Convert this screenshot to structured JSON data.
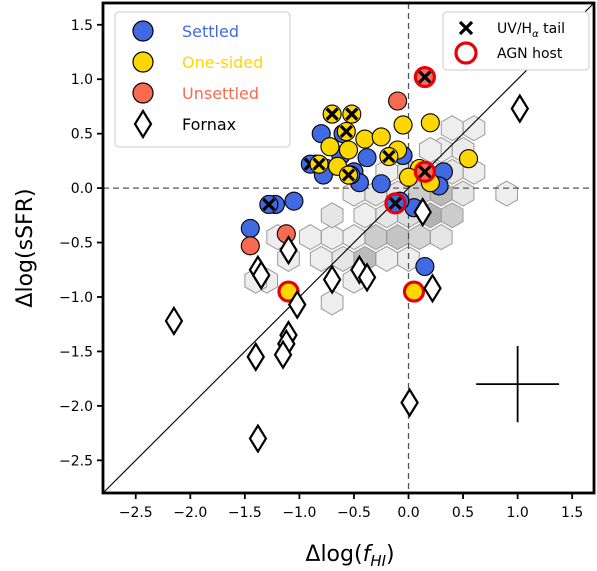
{
  "chart_data": {
    "type": "scatter",
    "title": "",
    "xlabel_main": "Δlog(",
    "xlabel_var": "f",
    "xlabel_sub": "HI",
    "xlabel_close": ")",
    "ylabel": "Δlog(sSFR)",
    "xlim": [
      -2.8,
      1.7
    ],
    "ylim": [
      -2.8,
      1.7
    ],
    "xticks": [
      -2.5,
      -2.0,
      -1.5,
      -1.0,
      -0.5,
      0.0,
      0.5,
      1.0,
      1.5
    ],
    "xtick_labels": [
      "−2.5",
      "−2.0",
      "−1.5",
      "−1.0",
      "−0.5",
      "0.0",
      "0.5",
      "1.0",
      "1.5"
    ],
    "yticks": [
      -2.5,
      -2.0,
      -1.5,
      -1.0,
      -0.5,
      0.0,
      0.5,
      1.0,
      1.5
    ],
    "ytick_labels": [
      "−2.5",
      "−2.0",
      "−1.5",
      "−1.0",
      "−0.5",
      "0.0",
      "0.5",
      "1.0",
      "1.5"
    ],
    "reference_lines": {
      "vertical_x": 0.0,
      "horizontal_y": 0.0,
      "one_to_one": true
    },
    "error_cross": {
      "x": 1.0,
      "y": -1.8,
      "xerr": 0.38,
      "yerr": 0.35
    },
    "legend_left": [
      {
        "label": "Settled",
        "marker": "circle",
        "color": "#4169e1",
        "text_color": "#4169e1"
      },
      {
        "label": "One-sided",
        "marker": "circle",
        "color": "#ffd700",
        "text_color": "#ffd700"
      },
      {
        "label": "Unsettled",
        "marker": "circle",
        "color": "#f96a52",
        "text_color": "#f96a52"
      },
      {
        "label": "Fornax",
        "marker": "diamond",
        "color": "#ffffff",
        "text_color": "#000000"
      }
    ],
    "legend_right": [
      {
        "label_main": "UV/H",
        "label_sub": "α",
        "label_tail": " tail",
        "marker": "x"
      },
      {
        "label_main": "AGN host",
        "label_sub": "",
        "label_tail": "",
        "marker": "red-ring"
      }
    ],
    "colors": {
      "settled": "#4169e1",
      "one_sided": "#ffd700",
      "unsettled": "#f96a52",
      "agn_ring": "#e8000b"
    },
    "hexbins": [
      {
        "x": 0.5,
        "y": 0.35,
        "d": 0.12
      },
      {
        "x": 0.4,
        "y": 0.15,
        "d": 0.15
      },
      {
        "x": 0.6,
        "y": 0.15,
        "d": 0.1
      },
      {
        "x": 0.2,
        "y": 0.15,
        "d": 0.1
      },
      {
        "x": 0.3,
        "y": 0.35,
        "d": 0.1
      },
      {
        "x": 0.0,
        "y": 0.15,
        "d": 0.15
      },
      {
        "x": -0.2,
        "y": 0.15,
        "d": 0.1
      },
      {
        "x": -0.1,
        "y": -0.05,
        "d": 0.15
      },
      {
        "x": 0.1,
        "y": -0.05,
        "d": 0.3
      },
      {
        "x": 0.3,
        "y": -0.05,
        "d": 0.4
      },
      {
        "x": 0.5,
        "y": -0.05,
        "d": 0.15
      },
      {
        "x": 0.2,
        "y": -0.25,
        "d": 0.45
      },
      {
        "x": 0.4,
        "y": -0.25,
        "d": 0.3
      },
      {
        "x": 0.0,
        "y": -0.25,
        "d": 0.2
      },
      {
        "x": -0.2,
        "y": -0.25,
        "d": 0.15
      },
      {
        "x": -0.4,
        "y": -0.25,
        "d": 0.1
      },
      {
        "x": -0.3,
        "y": -0.45,
        "d": 0.3
      },
      {
        "x": -0.1,
        "y": -0.45,
        "d": 0.35
      },
      {
        "x": 0.1,
        "y": -0.45,
        "d": 0.25
      },
      {
        "x": 0.3,
        "y": -0.45,
        "d": 0.15
      },
      {
        "x": -0.5,
        "y": -0.45,
        "d": 0.1
      },
      {
        "x": -0.7,
        "y": -0.45,
        "d": 0.1
      },
      {
        "x": -0.9,
        "y": -0.45,
        "d": 0.1
      },
      {
        "x": -0.6,
        "y": -0.65,
        "d": 0.15
      },
      {
        "x": -0.4,
        "y": -0.65,
        "d": 0.4
      },
      {
        "x": -0.2,
        "y": -0.65,
        "d": 0.1
      },
      {
        "x": 0.0,
        "y": -0.65,
        "d": 0.1
      },
      {
        "x": -0.8,
        "y": -0.65,
        "d": 0.1
      },
      {
        "x": -1.2,
        "y": -0.45,
        "d": 0.1
      },
      {
        "x": -1.1,
        "y": -0.65,
        "d": 0.1
      },
      {
        "x": -1.3,
        "y": -0.85,
        "d": 0.1
      },
      {
        "x": -0.5,
        "y": -0.85,
        "d": 0.1
      },
      {
        "x": -0.7,
        "y": -1.05,
        "d": 0.1
      },
      {
        "x": -0.7,
        "y": -0.25,
        "d": 0.15
      },
      {
        "x": -0.5,
        "y": -0.05,
        "d": 0.1
      },
      {
        "x": -0.3,
        "y": -0.05,
        "d": 0.15
      },
      {
        "x": 0.9,
        "y": -0.05,
        "d": 0.1
      },
      {
        "x": 0.6,
        "y": 0.55,
        "d": 0.1
      },
      {
        "x": 0.2,
        "y": 0.35,
        "d": 0.1
      },
      {
        "x": 0.4,
        "y": 0.55,
        "d": 0.1
      },
      {
        "x": -1.4,
        "y": -0.85,
        "d": 0.1
      }
    ],
    "series": [
      {
        "name": "Settled",
        "points": [
          {
            "x": -0.8,
            "y": 0.5
          },
          {
            "x": -0.75,
            "y": 0.18
          },
          {
            "x": -0.6,
            "y": 0.5
          },
          {
            "x": -0.62,
            "y": 0.3
          },
          {
            "x": -0.85,
            "y": 0.22
          },
          {
            "x": -0.78,
            "y": 0.12
          },
          {
            "x": -0.5,
            "y": 0.15
          },
          {
            "x": -0.45,
            "y": 0.05
          },
          {
            "x": -0.38,
            "y": 0.28
          },
          {
            "x": -0.25,
            "y": 0.04
          },
          {
            "x": -0.05,
            "y": 0.3
          },
          {
            "x": 0.05,
            "y": -0.18
          },
          {
            "x": -0.08,
            "y": -0.12
          },
          {
            "x": 0.32,
            "y": 0.15
          },
          {
            "x": 0.28,
            "y": 0.02
          },
          {
            "x": 0.15,
            "y": -0.72
          },
          {
            "x": -1.05,
            "y": -0.12
          },
          {
            "x": -1.45,
            "y": -0.37
          },
          {
            "x": -1.22,
            "y": -0.15
          },
          {
            "x": -0.53,
            "y": 0.12,
            "tail": true
          },
          {
            "x": -1.28,
            "y": -0.15,
            "tail": true
          },
          {
            "x": -0.9,
            "y": 0.22,
            "tail": true
          },
          {
            "x": -0.12,
            "y": -0.14,
            "tail": true,
            "agn": true
          }
        ]
      },
      {
        "name": "One-sided",
        "points": [
          {
            "x": -0.55,
            "y": 0.35
          },
          {
            "x": -0.4,
            "y": 0.45
          },
          {
            "x": -0.25,
            "y": 0.47
          },
          {
            "x": -0.65,
            "y": 0.2
          },
          {
            "x": -0.1,
            "y": 0.35
          },
          {
            "x": -0.05,
            "y": 0.58
          },
          {
            "x": 0.1,
            "y": 0.18
          },
          {
            "x": 0.2,
            "y": 0.05
          },
          {
            "x": 0.55,
            "y": 0.27
          },
          {
            "x": 0.2,
            "y": 0.6
          },
          {
            "x": 0.0,
            "y": 0.1
          },
          {
            "x": -0.72,
            "y": 0.38
          },
          {
            "x": -1.1,
            "y": -0.95,
            "agn": true
          },
          {
            "x": 0.05,
            "y": -0.95,
            "agn": true
          },
          {
            "x": -0.7,
            "y": 0.68,
            "tail": true
          },
          {
            "x": -0.52,
            "y": 0.68,
            "tail": true
          },
          {
            "x": -0.57,
            "y": 0.52,
            "tail": true
          },
          {
            "x": -0.82,
            "y": 0.22,
            "tail": true
          },
          {
            "x": -0.55,
            "y": 0.12,
            "tail": true
          },
          {
            "x": -0.18,
            "y": 0.29,
            "tail": true
          }
        ]
      },
      {
        "name": "Unsettled",
        "points": [
          {
            "x": -1.45,
            "y": -0.53
          },
          {
            "x": -1.12,
            "y": -0.42
          },
          {
            "x": -0.1,
            "y": 0.8
          },
          {
            "x": 0.15,
            "y": 1.02,
            "tail": true,
            "agn": true
          },
          {
            "x": 0.15,
            "y": 0.15,
            "tail": true,
            "agn": true
          }
        ]
      },
      {
        "name": "Fornax",
        "points": [
          {
            "x": 1.02,
            "y": 0.73
          },
          {
            "x": 0.13,
            "y": -0.22
          },
          {
            "x": -1.1,
            "y": -0.57
          },
          {
            "x": -0.7,
            "y": -0.84
          },
          {
            "x": -0.45,
            "y": -0.75
          },
          {
            "x": -0.38,
            "y": -0.82
          },
          {
            "x": 0.22,
            "y": -0.92
          },
          {
            "x": -1.38,
            "y": -0.75
          },
          {
            "x": -1.35,
            "y": -0.8
          },
          {
            "x": -1.02,
            "y": -1.07
          },
          {
            "x": -1.1,
            "y": -1.35
          },
          {
            "x": -1.12,
            "y": -1.43
          },
          {
            "x": -1.15,
            "y": -1.53
          },
          {
            "x": -1.4,
            "y": -1.55
          },
          {
            "x": -2.15,
            "y": -1.22
          },
          {
            "x": 0.01,
            "y": -1.97
          },
          {
            "x": -1.38,
            "y": -2.3
          }
        ]
      }
    ]
  }
}
